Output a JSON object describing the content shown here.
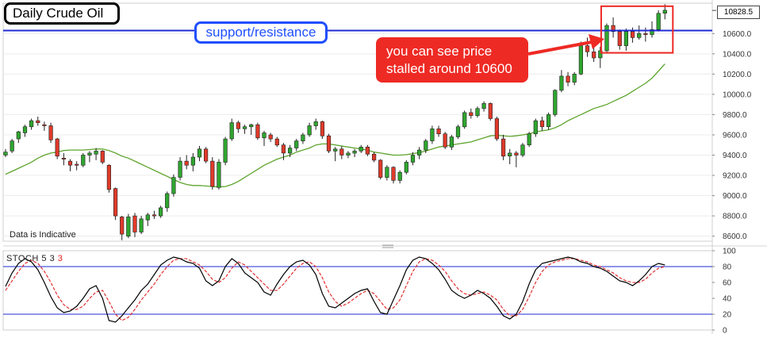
{
  "chart_data": {
    "type": "candlestick",
    "title": "Daily Crude Oil",
    "price_axis": {
      "ylim": [
        8550,
        10900
      ],
      "ticks": [
        "8600.0",
        "8800.0",
        "9000.0",
        "9200.0",
        "9400.0",
        "9600.0",
        "9800.0",
        "10000.0",
        "10200.0",
        "10400.0",
        "10600.0"
      ],
      "tick_values": [
        8600,
        8800,
        9000,
        9200,
        9400,
        9600,
        9800,
        10000,
        10200,
        10400,
        10600
      ]
    },
    "last_price_label": "10828.5",
    "last_price": 10828.5,
    "colors": {
      "up": "#2fa62f",
      "down": "#e03a2a",
      "ma": "#5fa52d",
      "support": "#1f2bd6",
      "stoch_k": "#000000",
      "stoch_d": "#e02020",
      "annotation": "#ee2a24"
    },
    "support_resistance": {
      "level": 10630,
      "label": "support/resistance"
    },
    "annotation": {
      "line1": "you can see price",
      "line2": "stalled around 10600"
    },
    "note": "Data is Indicative",
    "candles": [
      [
        9400,
        9460,
        9380,
        9430
      ],
      [
        9440,
        9560,
        9420,
        9540
      ],
      [
        9560,
        9640,
        9520,
        9630
      ],
      [
        9620,
        9700,
        9580,
        9680
      ],
      [
        9680,
        9760,
        9650,
        9740
      ],
      [
        9740,
        9780,
        9690,
        9720
      ],
      [
        9700,
        9730,
        9640,
        9690
      ],
      [
        9690,
        9720,
        9520,
        9550
      ],
      [
        9560,
        9570,
        9360,
        9390
      ],
      [
        9370,
        9420,
        9300,
        9360
      ],
      [
        9340,
        9360,
        9240,
        9300
      ],
      [
        9310,
        9340,
        9250,
        9300
      ],
      [
        9300,
        9420,
        9280,
        9400
      ],
      [
        9400,
        9440,
        9330,
        9420
      ],
      [
        9410,
        9470,
        9350,
        9440
      ],
      [
        9440,
        9450,
        9310,
        9330
      ],
      [
        9300,
        9310,
        9030,
        9060
      ],
      [
        9070,
        9080,
        8760,
        8800
      ],
      [
        8790,
        8800,
        8560,
        8620
      ],
      [
        8600,
        8820,
        8580,
        8790
      ],
      [
        8800,
        8830,
        8590,
        8640
      ],
      [
        8640,
        8800,
        8620,
        8770
      ],
      [
        8760,
        8830,
        8700,
        8810
      ],
      [
        8810,
        8850,
        8770,
        8800
      ],
      [
        8800,
        8900,
        8780,
        8880
      ],
      [
        8880,
        9040,
        8840,
        9020
      ],
      [
        9020,
        9210,
        8990,
        9180
      ],
      [
        9180,
        9380,
        9150,
        9340
      ],
      [
        9340,
        9400,
        9260,
        9300
      ],
      [
        9300,
        9420,
        9240,
        9380
      ],
      [
        9380,
        9490,
        9340,
        9460
      ],
      [
        9460,
        9480,
        9320,
        9340
      ],
      [
        9340,
        9380,
        9060,
        9090
      ],
      [
        9080,
        9360,
        9060,
        9330
      ],
      [
        9330,
        9580,
        9300,
        9560
      ],
      [
        9560,
        9760,
        9540,
        9720
      ],
      [
        9720,
        9740,
        9620,
        9660
      ],
      [
        9660,
        9700,
        9610,
        9680
      ],
      [
        9680,
        9710,
        9600,
        9700
      ],
      [
        9700,
        9720,
        9550,
        9570
      ],
      [
        9570,
        9640,
        9490,
        9620
      ],
      [
        9600,
        9620,
        9530,
        9560
      ],
      [
        9560,
        9580,
        9480,
        9500
      ],
      [
        9500,
        9520,
        9350,
        9420
      ],
      [
        9420,
        9500,
        9380,
        9470
      ],
      [
        9470,
        9560,
        9440,
        9540
      ],
      [
        9540,
        9620,
        9510,
        9600
      ],
      [
        9600,
        9720,
        9580,
        9690
      ],
      [
        9690,
        9760,
        9650,
        9730
      ],
      [
        9730,
        9740,
        9560,
        9590
      ],
      [
        9590,
        9610,
        9420,
        9440
      ],
      [
        9440,
        9480,
        9340,
        9460
      ],
      [
        9460,
        9490,
        9360,
        9400
      ],
      [
        9400,
        9440,
        9370,
        9420
      ],
      [
        9420,
        9460,
        9380,
        9440
      ],
      [
        9440,
        9500,
        9420,
        9480
      ],
      [
        9480,
        9500,
        9390,
        9410
      ],
      [
        9410,
        9430,
        9330,
        9350
      ],
      [
        9350,
        9360,
        9160,
        9180
      ],
      [
        9180,
        9300,
        9150,
        9280
      ],
      [
        9280,
        9290,
        9120,
        9150
      ],
      [
        9150,
        9250,
        9120,
        9230
      ],
      [
        9230,
        9350,
        9210,
        9330
      ],
      [
        9330,
        9430,
        9300,
        9400
      ],
      [
        9400,
        9480,
        9360,
        9450
      ],
      [
        9450,
        9560,
        9420,
        9540
      ],
      [
        9540,
        9690,
        9510,
        9660
      ],
      [
        9660,
        9690,
        9580,
        9610
      ],
      [
        9610,
        9630,
        9460,
        9480
      ],
      [
        9480,
        9600,
        9450,
        9580
      ],
      [
        9580,
        9700,
        9560,
        9680
      ],
      [
        9680,
        9840,
        9660,
        9820
      ],
      [
        9820,
        9860,
        9760,
        9790
      ],
      [
        9790,
        9880,
        9770,
        9860
      ],
      [
        9860,
        9930,
        9830,
        9910
      ],
      [
        9910,
        9920,
        9740,
        9760
      ],
      [
        9760,
        9780,
        9540,
        9560
      ],
      [
        9560,
        9600,
        9350,
        9390
      ],
      [
        9390,
        9460,
        9310,
        9420
      ],
      [
        9420,
        9440,
        9280,
        9400
      ],
      [
        9400,
        9520,
        9380,
        9500
      ],
      [
        9500,
        9630,
        9480,
        9610
      ],
      [
        9610,
        9760,
        9580,
        9740
      ],
      [
        9740,
        9780,
        9640,
        9680
      ],
      [
        9680,
        9820,
        9650,
        9800
      ],
      [
        9800,
        10050,
        9780,
        10040
      ],
      [
        10040,
        10240,
        10020,
        10180
      ],
      [
        10180,
        10220,
        10080,
        10120
      ],
      [
        10120,
        10220,
        10090,
        10200
      ],
      [
        10200,
        10520,
        10190,
        10480
      ],
      [
        10480,
        10560,
        10370,
        10420
      ],
      [
        10420,
        10480,
        10320,
        10360
      ],
      [
        10360,
        10470,
        10260,
        10430
      ],
      [
        10430,
        10700,
        10410,
        10680
      ],
      [
        10680,
        10760,
        10560,
        10620
      ],
      [
        10620,
        10640,
        10440,
        10480
      ],
      [
        10480,
        10650,
        10430,
        10620
      ],
      [
        10620,
        10660,
        10510,
        10560
      ],
      [
        10560,
        10680,
        10540,
        10600
      ],
      [
        10600,
        10660,
        10520,
        10590
      ],
      [
        10590,
        10720,
        10560,
        10640
      ],
      [
        10640,
        10830,
        10620,
        10800
      ],
      [
        10800,
        10890,
        10740,
        10830
      ]
    ],
    "moving_average": [
      9210,
      9240,
      9270,
      9300,
      9330,
      9370,
      9400,
      9420,
      9430,
      9445,
      9450,
      9450,
      9450,
      9455,
      9460,
      9460,
      9445,
      9420,
      9390,
      9370,
      9340,
      9310,
      9280,
      9250,
      9220,
      9190,
      9160,
      9130,
      9110,
      9100,
      9100,
      9095,
      9090,
      9085,
      9090,
      9110,
      9140,
      9180,
      9220,
      9260,
      9300,
      9330,
      9360,
      9380,
      9400,
      9430,
      9450,
      9470,
      9500,
      9510,
      9510,
      9500,
      9490,
      9480,
      9470,
      9460,
      9450,
      9430,
      9420,
      9410,
      9400,
      9400,
      9405,
      9415,
      9425,
      9440,
      9460,
      9480,
      9490,
      9500,
      9510,
      9520,
      9530,
      9550,
      9570,
      9590,
      9595,
      9590,
      9585,
      9590,
      9600,
      9610,
      9630,
      9640,
      9650,
      9670,
      9700,
      9740,
      9770,
      9800,
      9830,
      9860,
      9880,
      9900,
      9930,
      9960,
      9990,
      10030,
      10070,
      10110,
      10160,
      10230,
      10300
    ],
    "stochastic": {
      "label": "STOCH",
      "params": [
        "5",
        "3",
        "3"
      ],
      "ylim": [
        0,
        100
      ],
      "ticks": [
        "0",
        "20",
        "40",
        "60",
        "80",
        "100"
      ],
      "tick_values": [
        0,
        20,
        40,
        60,
        80,
        100
      ],
      "overbought": 80,
      "oversold": 20,
      "k": [
        55,
        72,
        84,
        90,
        86,
        76,
        60,
        42,
        28,
        22,
        24,
        30,
        40,
        52,
        56,
        40,
        12,
        10,
        18,
        28,
        38,
        50,
        58,
        70,
        82,
        88,
        92,
        90,
        86,
        84,
        78,
        62,
        56,
        62,
        80,
        90,
        84,
        72,
        66,
        60,
        48,
        44,
        58,
        70,
        80,
        86,
        88,
        82,
        70,
        46,
        30,
        28,
        34,
        40,
        46,
        50,
        52,
        36,
        22,
        20,
        38,
        56,
        76,
        88,
        92,
        90,
        84,
        76,
        64,
        50,
        44,
        40,
        44,
        50,
        46,
        40,
        30,
        18,
        14,
        20,
        36,
        58,
        76,
        84,
        86,
        88,
        90,
        92,
        90,
        86,
        84,
        80,
        78,
        74,
        68,
        62,
        60,
        56,
        62,
        70,
        80,
        84,
        82
      ],
      "d": [
        50,
        62,
        74,
        84,
        88,
        84,
        74,
        60,
        44,
        32,
        26,
        26,
        30,
        40,
        48,
        50,
        36,
        20,
        12,
        16,
        26,
        38,
        48,
        58,
        70,
        80,
        88,
        90,
        90,
        86,
        82,
        74,
        64,
        60,
        66,
        78,
        86,
        82,
        74,
        66,
        58,
        50,
        50,
        58,
        68,
        78,
        84,
        86,
        80,
        66,
        48,
        36,
        30,
        34,
        40,
        46,
        50,
        46,
        36,
        26,
        28,
        38,
        56,
        74,
        86,
        90,
        88,
        82,
        74,
        62,
        52,
        46,
        44,
        46,
        48,
        44,
        38,
        26,
        18,
        18,
        26,
        42,
        60,
        74,
        82,
        86,
        88,
        90,
        90,
        88,
        86,
        82,
        80,
        76,
        72,
        66,
        62,
        60,
        60,
        64,
        72,
        78,
        80
      ]
    }
  }
}
